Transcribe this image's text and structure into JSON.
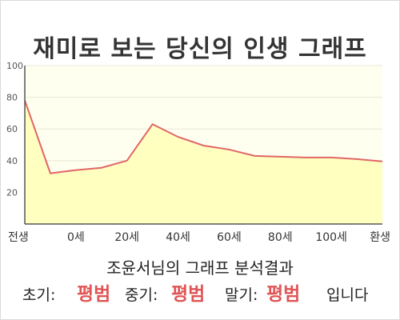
{
  "title": "재미로 보는 당신의 인생 그래프",
  "summary": "조윤서님의 그래프 분석결과",
  "result": {
    "early_label": "초기:",
    "early_value": "평범",
    "mid_label": "중기:",
    "mid_value": "평범",
    "late_label": "말기:",
    "late_value": "평범",
    "suffix": "입니다"
  },
  "colors": {
    "line": "#e06666",
    "area": "#ffffc0",
    "verdict": "#e05555",
    "plot_background": "#fffff0"
  },
  "chart_data": {
    "type": "area",
    "x": [
      0,
      1,
      2,
      3,
      4,
      5,
      6,
      7,
      8,
      9,
      10,
      11,
      12,
      13,
      14
    ],
    "values": [
      78,
      32,
      34,
      35.5,
      40,
      63,
      55,
      49.5,
      47,
      43,
      42.5,
      42,
      42,
      41,
      39.5
    ],
    "x_tick_labels": [
      "전생",
      "0세",
      "20세",
      "40세",
      "60세",
      "80세",
      "100세",
      "환생"
    ],
    "ylim": [
      0,
      100
    ],
    "y_ticks": [
      20,
      40,
      60,
      80,
      100
    ],
    "grid": true,
    "legend": "none",
    "title": "",
    "xlabel": "",
    "ylabel": ""
  }
}
